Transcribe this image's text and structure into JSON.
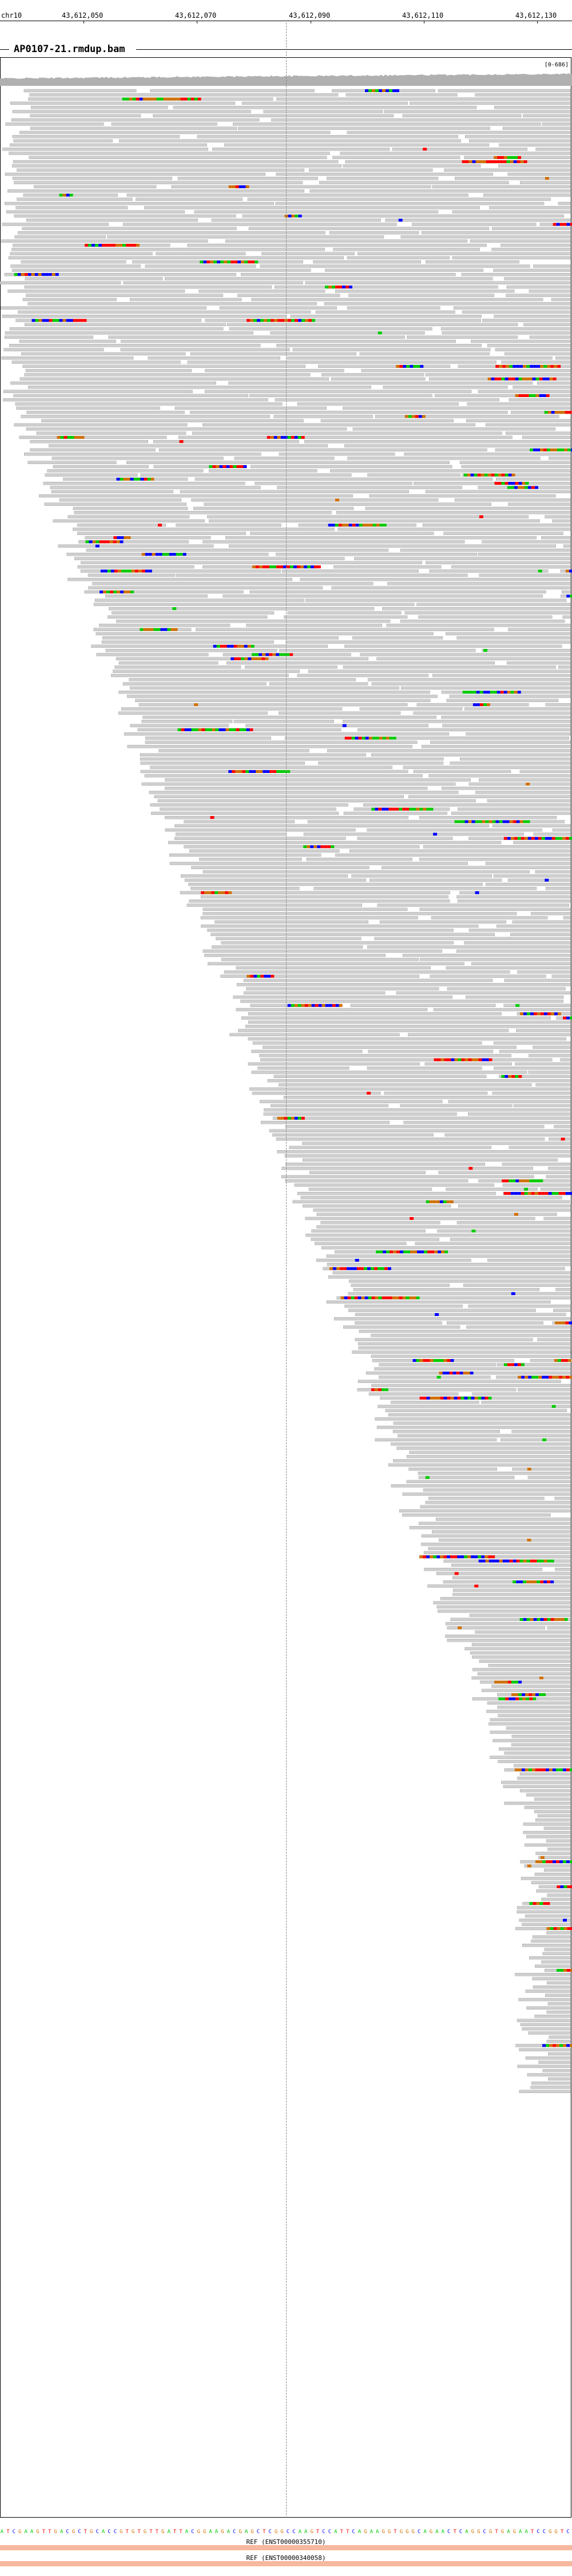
{
  "locus": {
    "chromosome": "chr10",
    "ticks": [
      "43,612,050",
      "43,612,070",
      "43,612,090",
      "43,612,110",
      "43,612,130"
    ]
  },
  "track": {
    "title": "AP0107-21.rmdup.bam",
    "downsample_label": "[0-686]"
  },
  "reference": {
    "sequence": "ATCGAAGTTGACGCTGCACCGTGTGTTGATTACGGAAGACGAGCTCGGCCAAGTCCATTCAGAAGGTGGGCAGAACTCAGGCGTGAGAATCCGGTC",
    "ref_label_1": "REF (ENST00000355710)",
    "ref_label_2": "REF (ENST00000340058)"
  },
  "colors": {
    "read": "#cfcfcf",
    "read_border": "#9a9a9a",
    "A": "#00cc00",
    "C": "#0000ff",
    "G": "#d17105",
    "T": "#ff0000",
    "insertion": "#7b2ad6",
    "ref_bar": "#f6b89e"
  }
}
